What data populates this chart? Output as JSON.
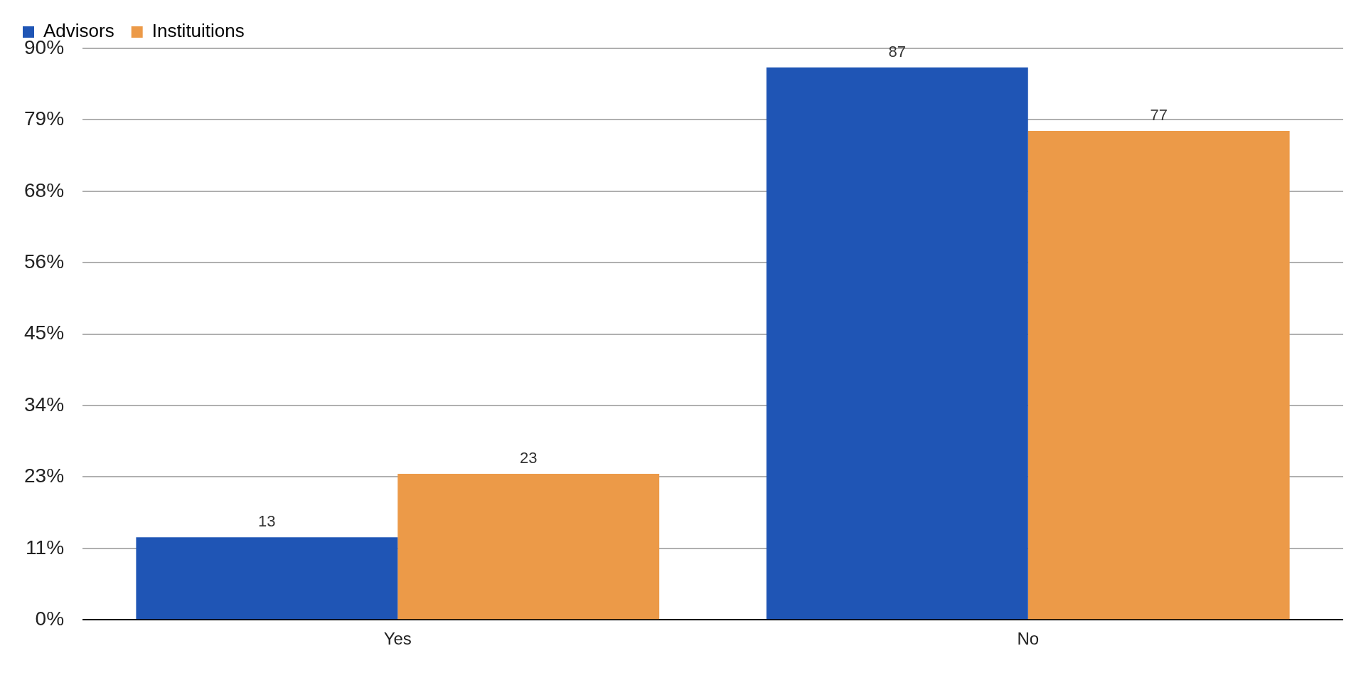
{
  "chart_data": {
    "type": "bar",
    "categories": [
      "Yes",
      "No"
    ],
    "series": [
      {
        "name": "Advisors",
        "color": "#1f55b5",
        "values": [
          13,
          87
        ]
      },
      {
        "name": "Instituitions",
        "color": "#ec9a48",
        "values": [
          23,
          77
        ]
      }
    ],
    "ylim": [
      0,
      90
    ],
    "yticks": [
      {
        "value": 0,
        "label": "0%"
      },
      {
        "value": 11.25,
        "label": "11%"
      },
      {
        "value": 22.5,
        "label": "23%"
      },
      {
        "value": 33.75,
        "label": "34%"
      },
      {
        "value": 45,
        "label": "45%"
      },
      {
        "value": 56.25,
        "label": "56%"
      },
      {
        "value": 67.5,
        "label": "68%"
      },
      {
        "value": 78.75,
        "label": "79%"
      },
      {
        "value": 90,
        "label": "90%"
      }
    ],
    "grid": "y",
    "legend": "top left",
    "data_labels": true
  }
}
